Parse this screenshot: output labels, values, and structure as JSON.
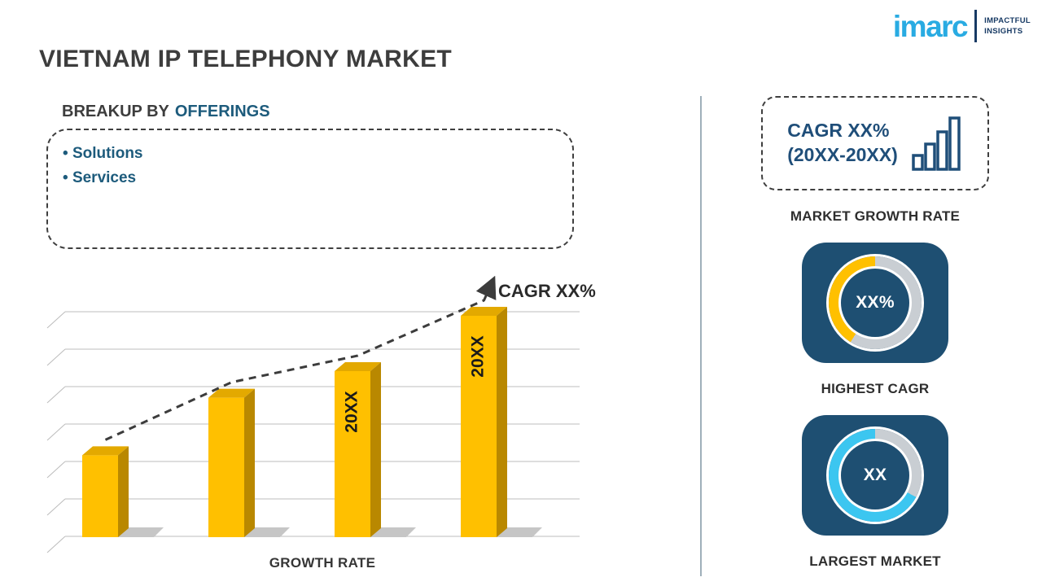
{
  "logo": {
    "brand": "imarc",
    "tagline_line1": "IMPACTFUL",
    "tagline_line2": "INSIGHTS"
  },
  "title": "VIETNAM IP TELEPHONY MARKET",
  "breakup": {
    "prefix": "BREAKUP BY",
    "highlight": "OFFERINGS",
    "items": [
      "Solutions",
      "Services"
    ]
  },
  "chart_data": {
    "type": "bar",
    "title": "",
    "categories": [
      "",
      "",
      "20XX",
      "20XX"
    ],
    "values": [
      37,
      63,
      75,
      100
    ],
    "ylim": [
      0,
      100
    ],
    "xlabel": "GROWTH RATE",
    "ylabel": "",
    "annotation": "CAGR XX%",
    "grid": "horizontal",
    "trend": "increasing dashed arrow across bar tops",
    "colors": {
      "front": "#ffc000",
      "top": "#e3a900",
      "side": "#b98800",
      "shadow": "#c6c6c6",
      "line": "#3c3c3c",
      "grid": "#bcbcbc",
      "label": "#1a1a1a"
    }
  },
  "sidebar": {
    "cagr_box": {
      "line1": "CAGR XX%",
      "line2": "(20XX-20XX)"
    },
    "market_growth_label": "MARKET GROWTH RATE",
    "highest_cagr": {
      "value": "XX%",
      "label": "HIGHEST CAGR",
      "donut": {
        "base": "#c9ced3",
        "accent": "#ffc000",
        "accent_from": 212,
        "accent_to": 360
      }
    },
    "largest_market": {
      "value": "XX",
      "label": "LARGEST MARKET",
      "donut": {
        "base": "#3cc6f0",
        "accent": "#c9ced3",
        "accent_from": 0,
        "accent_to": 118
      }
    }
  },
  "colors": {
    "navy": "#1f4e79",
    "tile": "#1e4f72",
    "cyan": "#29abe2",
    "yellow": "#ffc000",
    "divider": "#9fb0ba"
  }
}
